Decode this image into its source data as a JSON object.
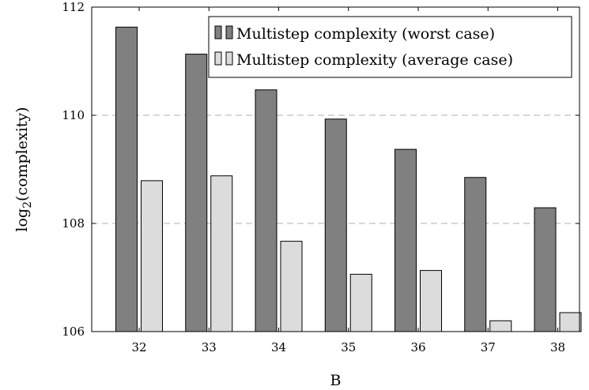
{
  "chart_data": {
    "type": "bar",
    "title": "",
    "xlabel": "B",
    "ylabel": "log",
    "ylabel_sub": "2",
    "ylabel_suffix": "(complexity)",
    "categories": [
      "32",
      "33",
      "34",
      "35",
      "36",
      "37",
      "38"
    ],
    "yticks": [
      "106",
      "108",
      "110",
      "112"
    ],
    "ylim": [
      106,
      112
    ],
    "grid": "horizontal-dashed",
    "legend_position": "top-right",
    "series": [
      {
        "name": "Multistep complexity (worst case)",
        "color": "#808080",
        "values": [
          111.63,
          111.13,
          110.47,
          109.93,
          109.37,
          108.85,
          108.29
        ]
      },
      {
        "name": "Multistep complexity (average case)",
        "color": "#dcdcdc",
        "values": [
          108.79,
          108.88,
          107.67,
          107.06,
          107.13,
          106.2,
          106.35
        ]
      }
    ]
  }
}
